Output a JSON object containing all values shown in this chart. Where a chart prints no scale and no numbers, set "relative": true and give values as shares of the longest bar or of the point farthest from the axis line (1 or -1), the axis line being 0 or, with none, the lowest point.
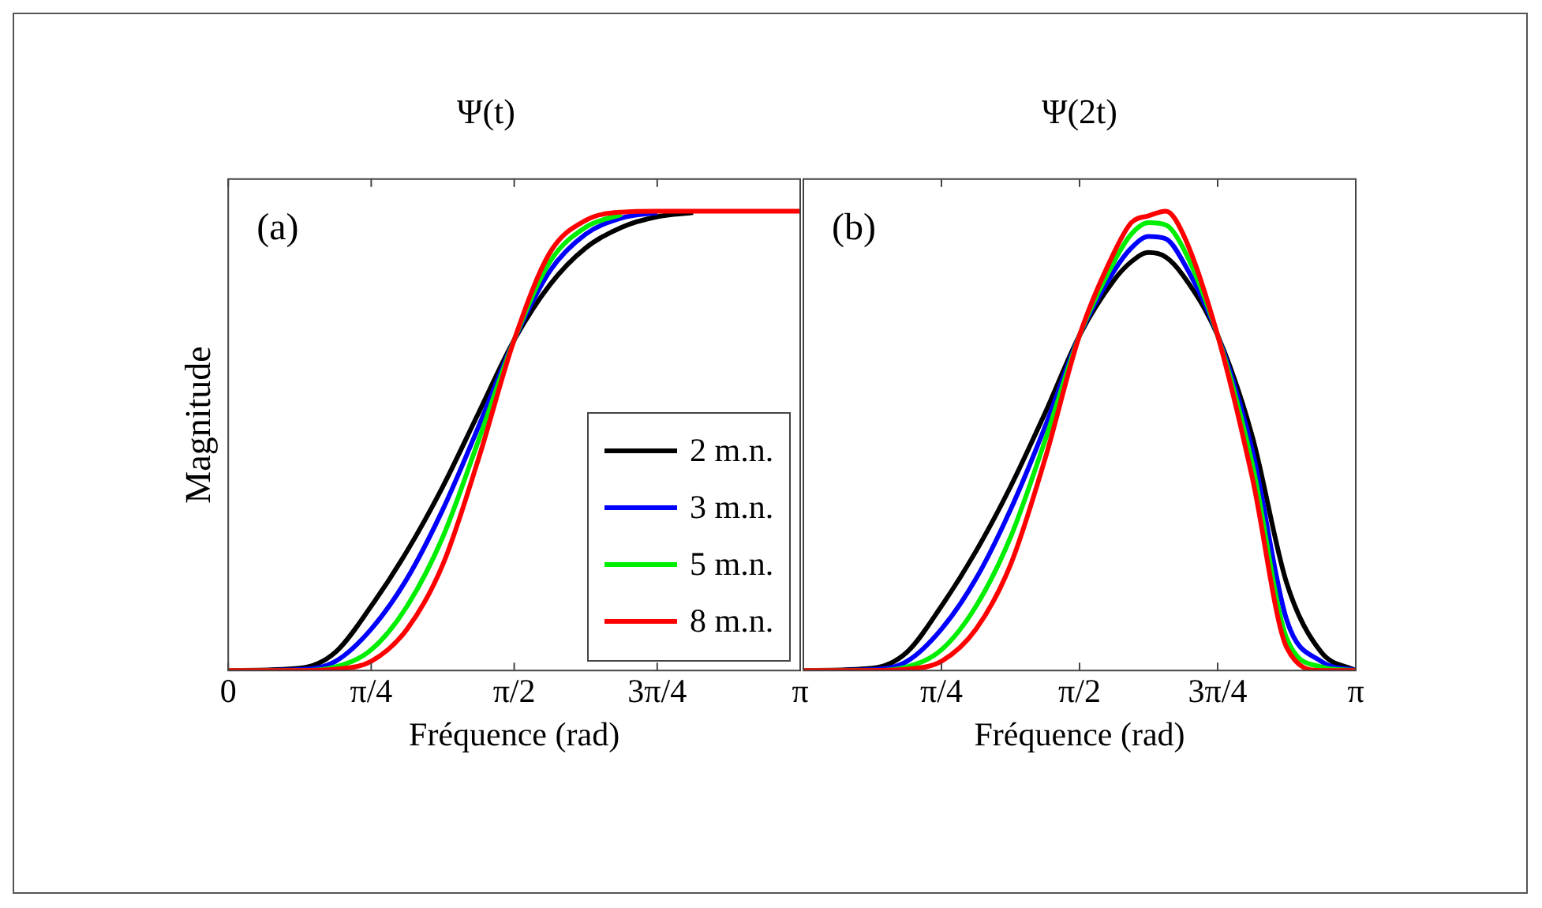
{
  "chart_data": [
    {
      "type": "line",
      "title": "Ψ(t)",
      "xlabel": "Fréquence (rad)",
      "ylabel": "Magnitude",
      "relative": true,
      "tick_labels": "x",
      "legend": "bottom right",
      "annotations": [
        "(a)"
      ],
      "xlim": [
        0,
        3.1416
      ],
      "xticks": [
        0,
        {
          "value": 0.7854,
          "label": "π/4"
        },
        {
          "value": 1.5708,
          "label": "π/2"
        },
        {
          "value": 2.3562,
          "label": "3π/4"
        },
        {
          "value": 3.1416,
          "label": "π"
        }
      ],
      "x": [
        0,
        0.393,
        0.589,
        0.785,
        0.982,
        1.178,
        1.374,
        1.571,
        1.767,
        1.963,
        2.16,
        2.356,
        2.553,
        2.749,
        3.1416
      ],
      "series": [
        {
          "name": "2 m.n.",
          "color": "#000000",
          "values": [
            0,
            0.005,
            0.04,
            0.14,
            0.26,
            0.4,
            0.56,
            0.72,
            0.84,
            0.92,
            0.965,
            0.988,
            0.997,
            null,
            null
          ]
        },
        {
          "name": "3 m.n.",
          "color": "#0000ff",
          "values": [
            0,
            0.002,
            0.02,
            0.09,
            0.2,
            0.35,
            0.53,
            0.72,
            0.87,
            0.95,
            0.985,
            0.997,
            null,
            null,
            null
          ]
        },
        {
          "name": "5 m.n.",
          "color": "#00ee00",
          "values": [
            0,
            0,
            0.008,
            0.045,
            0.14,
            0.29,
            0.5,
            0.72,
            0.89,
            0.965,
            0.993,
            null,
            null,
            null,
            null
          ]
        },
        {
          "name": "8 m.n.",
          "color": "#ff0000",
          "values": [
            0,
            0,
            0.003,
            0.02,
            0.09,
            0.23,
            0.46,
            0.72,
            0.91,
            0.98,
            0.998,
            1,
            1,
            1,
            1
          ]
        }
      ]
    },
    {
      "type": "line",
      "title": "Ψ(2t)",
      "xlabel": "Fréquence (rad)",
      "relative": true,
      "tick_labels": "x",
      "annotations": [
        "(b)"
      ],
      "xlim": [
        0,
        3.1416
      ],
      "xticks": [
        {
          "value": 0.7854,
          "label": "π/4"
        },
        {
          "value": 1.5708,
          "label": "π/2"
        },
        {
          "value": 2.3562,
          "label": "3π/4"
        },
        {
          "value": 3.1416,
          "label": "π"
        }
      ],
      "x": [
        0,
        0.393,
        0.589,
        0.785,
        0.982,
        1.178,
        1.374,
        1.571,
        1.767,
        1.865,
        1.963,
        2.062,
        2.16,
        2.356,
        2.553,
        2.749,
        2.945,
        3.1416
      ],
      "series": [
        {
          "color": "#000000",
          "values": [
            0,
            0.005,
            0.04,
            0.14,
            0.26,
            0.4,
            0.56,
            0.73,
            0.85,
            0.89,
            0.91,
            0.9,
            0.86,
            0.73,
            0.51,
            0.19,
            0.04,
            0
          ]
        },
        {
          "color": "#0000ff",
          "values": [
            0,
            0.002,
            0.02,
            0.09,
            0.2,
            0.35,
            0.53,
            0.73,
            0.87,
            0.92,
            0.945,
            0.94,
            0.89,
            0.73,
            0.48,
            0.11,
            0.02,
            0
          ]
        },
        {
          "color": "#00ee00",
          "values": [
            0,
            0,
            0.008,
            0.045,
            0.14,
            0.29,
            0.5,
            0.73,
            0.89,
            0.95,
            0.975,
            0.97,
            0.92,
            0.73,
            0.45,
            0.07,
            0.008,
            0
          ]
        },
        {
          "color": "#ff0000",
          "values": [
            0,
            0,
            0.003,
            0.02,
            0.09,
            0.23,
            0.46,
            0.73,
            0.91,
            0.975,
            0.99,
            1,
            0.95,
            0.73,
            0.42,
            0.05,
            0,
            0
          ]
        }
      ]
    }
  ]
}
